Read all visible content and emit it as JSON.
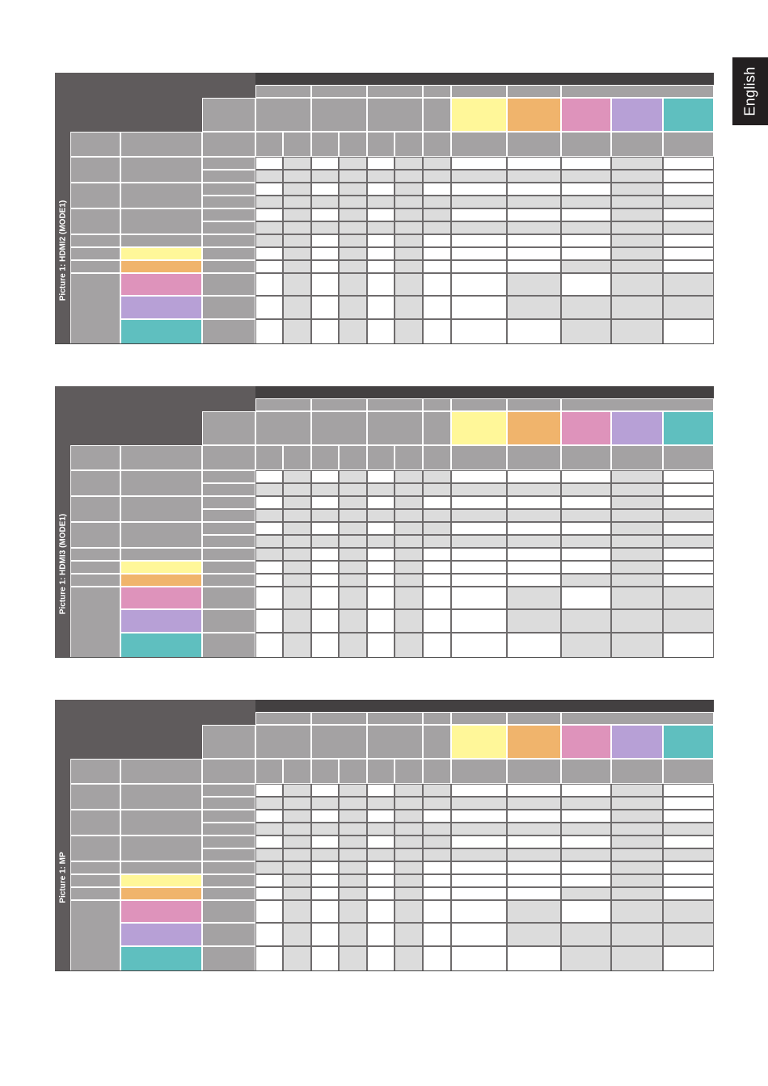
{
  "language_tab": "English",
  "tables": [
    {
      "name": "hdmi2",
      "vertical_label": "Picture 1: HDMI2 (MODE1)"
    },
    {
      "name": "hdmi3",
      "vertical_label": "Picture 1: HDMI3 (MODE1)"
    },
    {
      "name": "mp",
      "vertical_label": "Picture 1: MP"
    }
  ],
  "colors": {
    "dark_header": "#5f5b5c",
    "darker_header": "#434041",
    "mid_gray": "#a4a2a3",
    "light_gray": "#dcdcdc",
    "white": "#ffffff",
    "yellow": "#fff799",
    "orange": "#f0b46c",
    "pink": "#de93bb",
    "lavender": "#b7a0d6",
    "teal": "#5fbfbf"
  }
}
